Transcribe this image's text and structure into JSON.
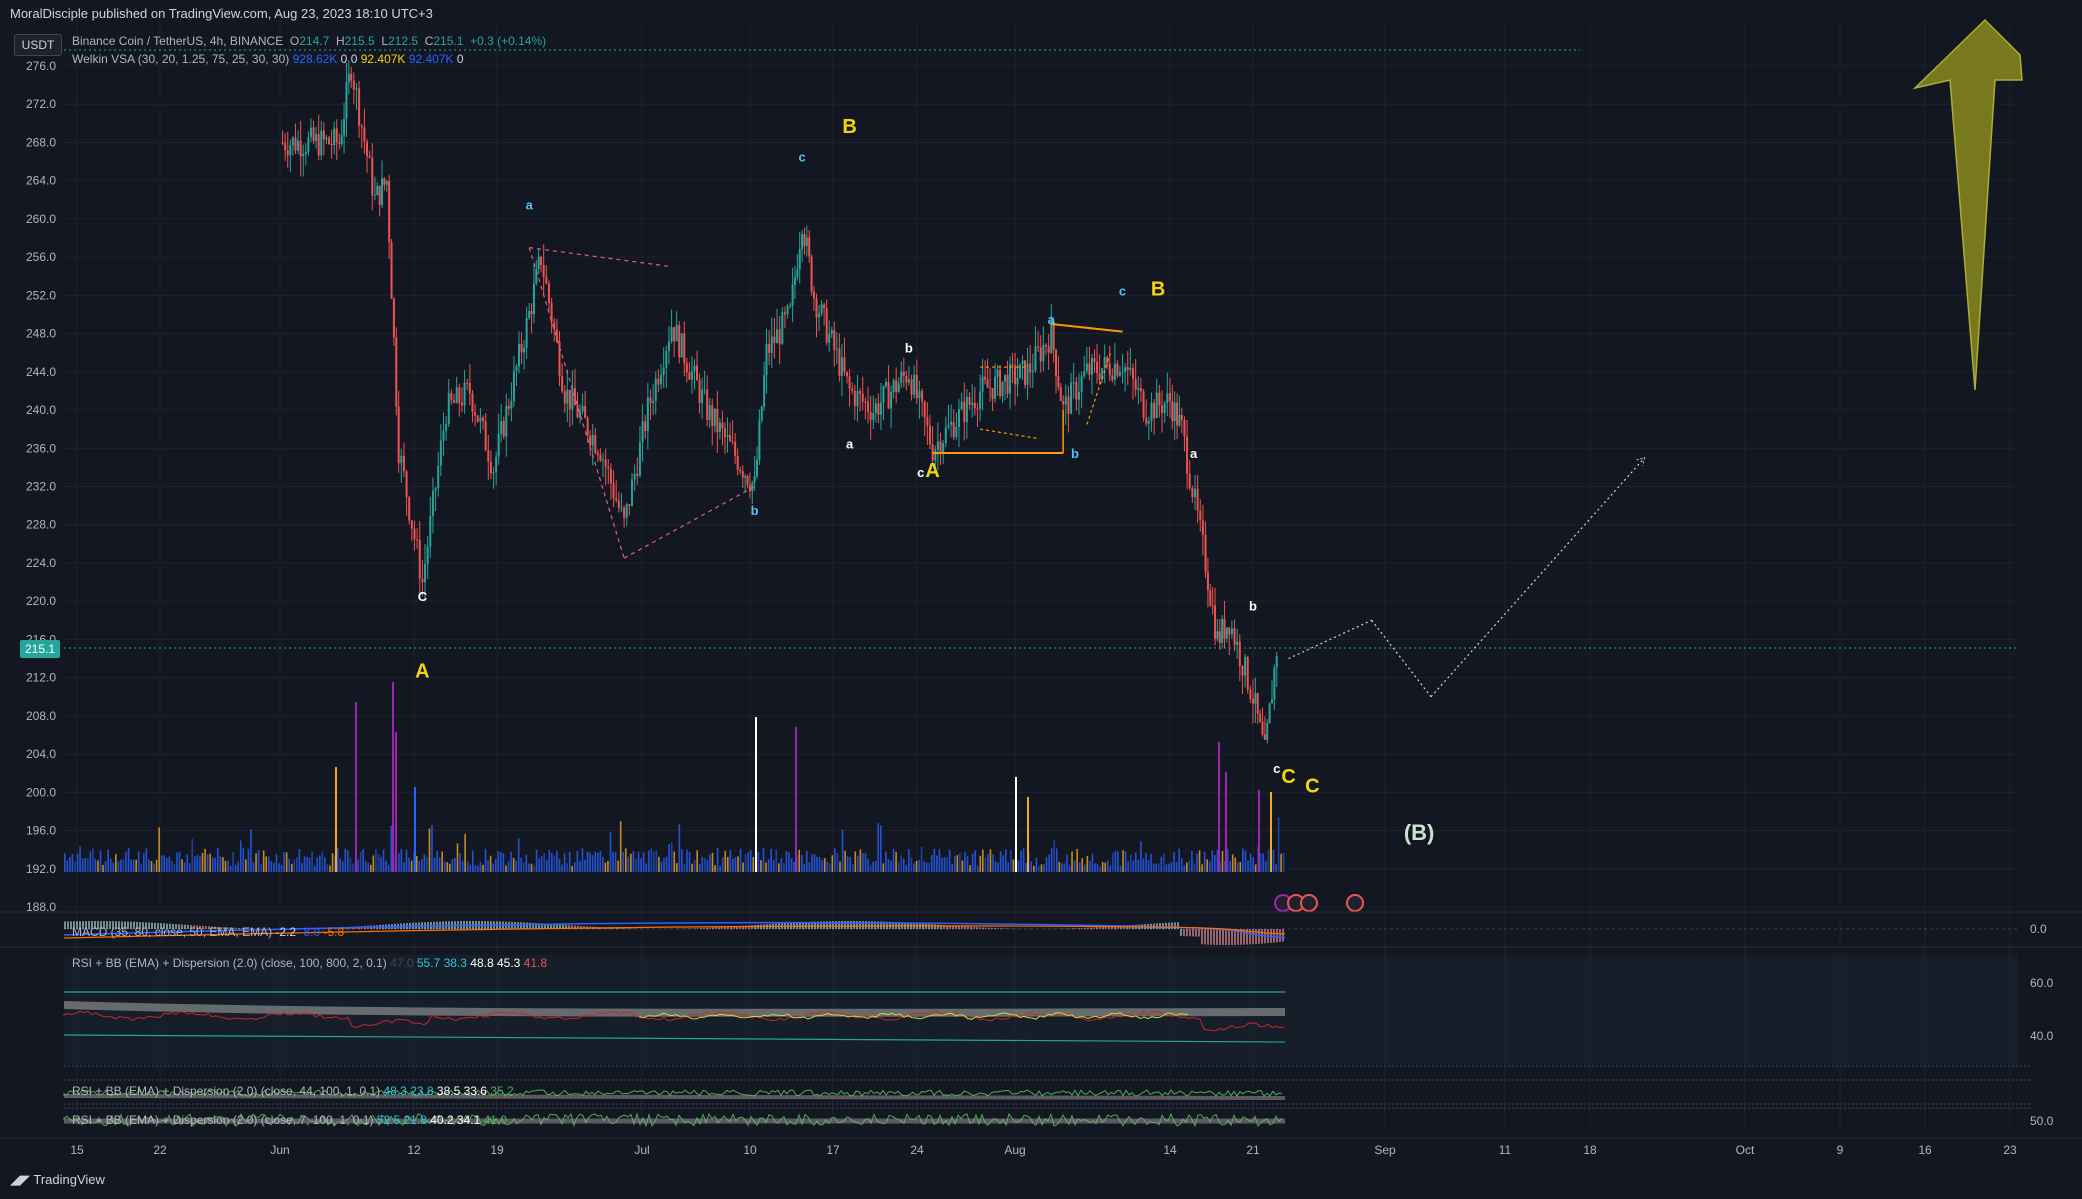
{
  "header": {
    "published": "MoralDisciple published on TradingView.com, Aug 23, 2023 18:10 UTC+3"
  },
  "symbol": {
    "name": "Binance Coin / TetherUS, 4h, BINANCE",
    "open_label": "O",
    "open": "214.7",
    "high_label": "H",
    "high": "215.5",
    "low_label": "L",
    "low": "212.5",
    "close_label": "C",
    "close": "215.1",
    "change": "+0.3 (+0.14%)"
  },
  "indicators": {
    "vsa": {
      "label": "Welkin VSA (30, 20, 1.25, 75, 25, 30, 30)",
      "v1": "928.62K",
      "v2": "0",
      "v3": "0",
      "v4": "92.407K",
      "v5": "92.407K",
      "v6": "0"
    },
    "macd": {
      "label": "MACD (35, 80, close, 50, EMA, EMA)",
      "v1": "-2.2",
      "v2": "-8.0",
      "v3": "-5.8"
    },
    "rsi1": {
      "label": "RSI + BB (EMA) + Dispersion (2.0) (close, 100, 800, 2, 0.1)",
      "v0": "47.0",
      "v1": "55.7",
      "v2": "38.3",
      "v3": "48.8",
      "v4": "45.3",
      "v5": "41.8"
    },
    "rsi2": {
      "label": "RSI + BB (EMA) + Dispersion (2.0) (close, 44, 100, 1, 0.1)",
      "v1": "48.3",
      "v2": "23.8",
      "v3": "38.5",
      "v4": "33.6",
      "v5": "35.2"
    },
    "rsi3": {
      "label": "RSI + BB (EMA) + Dispersion (2.0) (close, 7, 100, 1, 0.1)",
      "v1": "52.5",
      "v2": "21.8",
      "v3": "40.2",
      "v4": "34.1",
      "v5": "41.0"
    }
  },
  "currency": "USDT",
  "last_price": "215.1",
  "colors": {
    "bg": "#131722",
    "up": "#26a69a",
    "down": "#ef5350",
    "wave_major": "#f5d40b",
    "wave_minor": "#4fc3f7",
    "wave_white": "#ffffff",
    "orange": "#ff9800",
    "arrow": "#8a8a1e"
  },
  "chart_data": {
    "type": "candlestick",
    "y_ticks": [
      "276.0",
      "272.0",
      "268.0",
      "264.0",
      "260.0",
      "256.0",
      "252.0",
      "248.0",
      "244.0",
      "240.0",
      "236.0",
      "232.0",
      "228.0",
      "224.0",
      "220.0",
      "216.0",
      "212.0",
      "208.0",
      "204.0",
      "200.0",
      "196.0",
      "192.0",
      "188.0"
    ],
    "y_range": [
      186,
      278
    ],
    "x_ticks": [
      "15",
      "22",
      "Jun",
      "12",
      "19",
      "Jul",
      "10",
      "17",
      "24",
      "Aug",
      "14",
      "21",
      "Sep",
      "11",
      "18",
      "Oct",
      "9",
      "16",
      "23"
    ],
    "price_path": [
      {
        "date": "May 31",
        "price": 268
      },
      {
        "date": "Jun 5",
        "price": 268
      },
      {
        "date": "Jun 6",
        "price": 276
      },
      {
        "date": "Jun 8",
        "price": 262
      },
      {
        "date": "Jun 9",
        "price": 264
      },
      {
        "date": "Jun 10",
        "price": 236
      },
      {
        "date": "Jun 12",
        "price": 222
      },
      {
        "date": "Jun 14",
        "price": 240
      },
      {
        "date": "Jun 16",
        "price": 242
      },
      {
        "date": "Jun 18",
        "price": 234
      },
      {
        "date": "Jun 21",
        "price": 250
      },
      {
        "date": "Jun 22",
        "price": 256
      },
      {
        "date": "Jun 24",
        "price": 242
      },
      {
        "date": "Jun 27",
        "price": 236
      },
      {
        "date": "Jun 29",
        "price": 228
      },
      {
        "date": "Jul 1",
        "price": 240
      },
      {
        "date": "Jul 3",
        "price": 249
      },
      {
        "date": "Jul 6",
        "price": 240
      },
      {
        "date": "Jul 9",
        "price": 234
      },
      {
        "date": "Jul 10",
        "price": 232
      },
      {
        "date": "Jul 11",
        "price": 246
      },
      {
        "date": "Jul 13",
        "price": 250
      },
      {
        "date": "Jul 14",
        "price": 260
      },
      {
        "date": "Jul 15",
        "price": 252
      },
      {
        "date": "Jul 18",
        "price": 242
      },
      {
        "date": "Jul 20",
        "price": 240
      },
      {
        "date": "Jul 23",
        "price": 244
      },
      {
        "date": "Jul 25",
        "price": 236
      },
      {
        "date": "Jul 27",
        "price": 239
      },
      {
        "date": "Jul 29",
        "price": 242
      },
      {
        "date": "Aug 2",
        "price": 244
      },
      {
        "date": "Aug 4",
        "price": 248
      },
      {
        "date": "Aug 5",
        "price": 240
      },
      {
        "date": "Aug 7",
        "price": 244
      },
      {
        "date": "Aug 10",
        "price": 245
      },
      {
        "date": "Aug 12",
        "price": 240
      },
      {
        "date": "Aug 14",
        "price": 241
      },
      {
        "date": "Aug 15",
        "price": 238
      },
      {
        "date": "Aug 17",
        "price": 224
      },
      {
        "date": "Aug 18",
        "price": 216
      },
      {
        "date": "Aug 19",
        "price": 218
      },
      {
        "date": "Aug 21",
        "price": 210
      },
      {
        "date": "Aug 22",
        "price": 204
      },
      {
        "date": "Aug 23",
        "price": 215
      }
    ],
    "projection": [
      {
        "date": "Aug 24",
        "price": 214
      },
      {
        "date": "Aug 31",
        "price": 218
      },
      {
        "date": "Sep 5",
        "price": 210
      },
      {
        "date": "Sep 23",
        "price": 235
      }
    ],
    "wave_labels": [
      {
        "text": "C",
        "date": "Jun 12",
        "price": 220,
        "style": "white"
      },
      {
        "text": "A",
        "date": "Jun 12",
        "price": 212,
        "style": "major"
      },
      {
        "text": "a",
        "date": "Jun 21",
        "price": 261,
        "style": "minor"
      },
      {
        "text": "b",
        "date": "Jul 10",
        "price": 229,
        "style": "minor"
      },
      {
        "text": "c",
        "date": "Jul 14",
        "price": 266,
        "style": "minor"
      },
      {
        "text": "B",
        "date": "Jul 18",
        "price": 269,
        "style": "major"
      },
      {
        "text": "a",
        "date": "Jul 18",
        "price": 236,
        "style": "white"
      },
      {
        "text": "b",
        "date": "Jul 23",
        "price": 246,
        "style": "white"
      },
      {
        "text": "c",
        "date": "Jul 24",
        "price": 233,
        "style": "white"
      },
      {
        "text": "A",
        "date": "Jul 25",
        "price": 233,
        "style": "major"
      },
      {
        "text": "a",
        "date": "Aug 4",
        "price": 249,
        "style": "minor"
      },
      {
        "text": "b",
        "date": "Aug 6",
        "price": 235,
        "style": "minor"
      },
      {
        "text": "c",
        "date": "Aug 10",
        "price": 252,
        "style": "minor"
      },
      {
        "text": "B",
        "date": "Aug 13",
        "price": 252,
        "style": "major"
      },
      {
        "text": "a",
        "date": "Aug 16",
        "price": 235,
        "style": "white"
      },
      {
        "text": "b",
        "date": "Aug 21",
        "price": 219,
        "style": "white"
      },
      {
        "text": "c",
        "date": "Aug 23",
        "price": 202,
        "style": "white"
      },
      {
        "text": "C",
        "date": "Aug 24",
        "price": 201,
        "style": "major"
      },
      {
        "text": "C",
        "date": "Aug 26",
        "price": 200,
        "style": "major"
      },
      {
        "text": "(B)",
        "date": "Sep 4",
        "price": 195,
        "style": "green"
      }
    ],
    "macd_zero": "0.0",
    "rsi_ticks": [
      "60.0",
      "40.0"
    ],
    "rsi3_tick": "50.0"
  },
  "footer": {
    "brand": "TradingView"
  }
}
